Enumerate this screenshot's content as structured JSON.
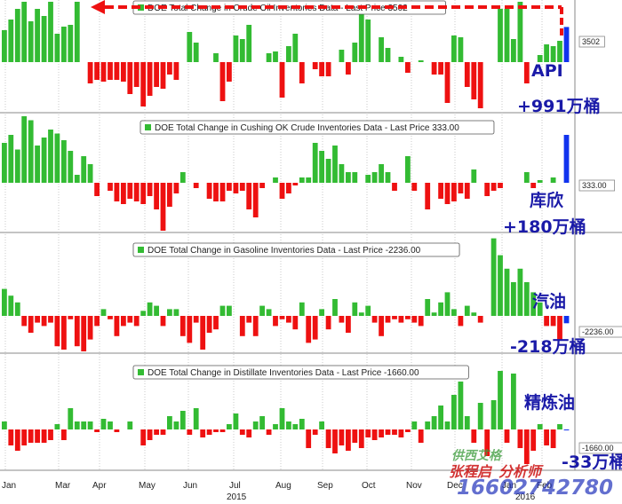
{
  "colors": {
    "positive": "#33bb33",
    "negative": "#ee1111",
    "latest": "#1133ee",
    "annotation": "#1a1aa8",
    "arrow": "#ee1111"
  },
  "chart_data": [
    {
      "type": "bar",
      "title": "DOE Total Change in Crude Oil Inventories Data - Last Price 3502",
      "last_price_label": "3502",
      "annotation": [
        "API",
        "+991万桶"
      ],
      "values": [
        900,
        1200,
        1500,
        1700,
        1150,
        1500,
        1300,
        1800,
        800,
        1000,
        1050,
        1750,
        0,
        -600,
        -500,
        -550,
        -500,
        -500,
        -550,
        -900,
        -700,
        -1250,
        -950,
        -700,
        -750,
        -350,
        -500,
        0,
        850,
        550,
        0,
        0,
        250,
        -1100,
        -550,
        750,
        650,
        1050,
        0,
        0,
        250,
        300,
        -1000,
        450,
        800,
        -600,
        0,
        -200,
        -400,
        -400,
        0,
        350,
        -350,
        550,
        1700,
        1200,
        0,
        700,
        400,
        0,
        150,
        -300,
        0,
        50,
        0,
        -350,
        -350,
        -1150,
        750,
        700,
        -700,
        -1050,
        -1300,
        0,
        0,
        1500,
        1500,
        650,
        1750,
        -600,
        0,
        200,
        500,
        450,
        600,
        991
      ],
      "latest_value": 991,
      "arrow": "dashed arrow from latest bar back to early April level"
    },
    {
      "type": "bar",
      "title": "DOE Total Change in Cushing OK Crude Inventories Data - Last Price 333.00",
      "last_price_label": "333.00",
      "annotation": [
        "库欣",
        "+180万桶"
      ],
      "values": [
        150,
        180,
        125,
        260,
        235,
        140,
        170,
        200,
        185,
        160,
        120,
        30,
        100,
        70,
        -50,
        0,
        -30,
        -70,
        -80,
        -60,
        -70,
        -80,
        -50,
        -100,
        -180,
        -90,
        -40,
        40,
        0,
        -20,
        0,
        -60,
        -70,
        -70,
        -30,
        -40,
        -30,
        -100,
        -130,
        -20,
        0,
        20,
        -60,
        -40,
        -10,
        20,
        20,
        150,
        120,
        90,
        140,
        70,
        40,
        40,
        0,
        30,
        40,
        70,
        40,
        -30,
        0,
        100,
        -30,
        0,
        -100,
        0,
        -60,
        -80,
        -70,
        -40,
        -60,
        50,
        0,
        -50,
        -30,
        -20,
        0,
        0,
        0,
        40,
        -20,
        10,
        0,
        20,
        0,
        180
      ],
      "latest_value": 180
    },
    {
      "type": "bar",
      "title": "DOE Total Change in Gasoline Inventories Data - Last Price -2236.00",
      "last_price_label": "-2236.00",
      "annotation": [
        "汽油",
        "-218万桶"
      ],
      "values": [
        800,
        600,
        400,
        -300,
        -500,
        -200,
        -300,
        -200,
        -900,
        -1000,
        -100,
        -900,
        -1100,
        -700,
        -300,
        200,
        -100,
        -600,
        -300,
        -200,
        -300,
        150,
        400,
        300,
        -300,
        200,
        200,
        -600,
        -800,
        -200,
        -1000,
        -500,
        -400,
        300,
        300,
        0,
        -600,
        -200,
        -600,
        300,
        200,
        -300,
        -100,
        -200,
        -400,
        400,
        -800,
        -700,
        200,
        -400,
        500,
        -200,
        -500,
        400,
        100,
        300,
        -200,
        -600,
        -200,
        -100,
        -200,
        -100,
        -200,
        -300,
        500,
        100,
        400,
        700,
        200,
        -300,
        300,
        100,
        -200,
        0,
        2300,
        1800,
        1400,
        1000,
        1400,
        1000,
        700,
        400,
        -300,
        -300,
        -700,
        -218
      ],
      "latest_value": -218
    },
    {
      "type": "bar",
      "title": "DOE Total Change in Distillate Inventories Data - Last Price -1660.00",
      "last_price_label": "-1660.00",
      "annotation": [
        "精炼油",
        "-33万桶"
      ],
      "values": [
        300,
        -600,
        -800,
        -600,
        -500,
        -500,
        -500,
        -400,
        200,
        -400,
        800,
        300,
        300,
        300,
        -100,
        400,
        300,
        -100,
        0,
        300,
        0,
        -600,
        -400,
        -200,
        -200,
        500,
        300,
        700,
        -200,
        800,
        -300,
        -200,
        -100,
        -100,
        200,
        600,
        -200,
        -300,
        300,
        500,
        -200,
        200,
        800,
        300,
        200,
        400,
        -700,
        -200,
        300,
        -700,
        -900,
        -600,
        -800,
        -500,
        -700,
        -300,
        -400,
        -300,
        -200,
        -200,
        -300,
        -100,
        300,
        -500,
        300,
        500,
        900,
        300,
        1300,
        1800,
        500,
        -500,
        1000,
        -1000,
        1100,
        2200,
        -500,
        2100,
        -700,
        -1300,
        -800,
        200,
        -600,
        -700,
        200,
        -33
      ],
      "latest_value": -33
    }
  ],
  "x_axis": {
    "month_labels": [
      "Jan",
      "Mar",
      "Apr",
      "May",
      "Jun",
      "Jul",
      "Aug",
      "Sep",
      "Oct",
      "Nov",
      "Dec",
      "Jan",
      "Feb"
    ],
    "year_labels": [
      "2015",
      "2016"
    ]
  },
  "watermark": {
    "line1": "供西艾格",
    "line2": "张程启",
    "line3": "分析师",
    "phone": "16602742780"
  }
}
